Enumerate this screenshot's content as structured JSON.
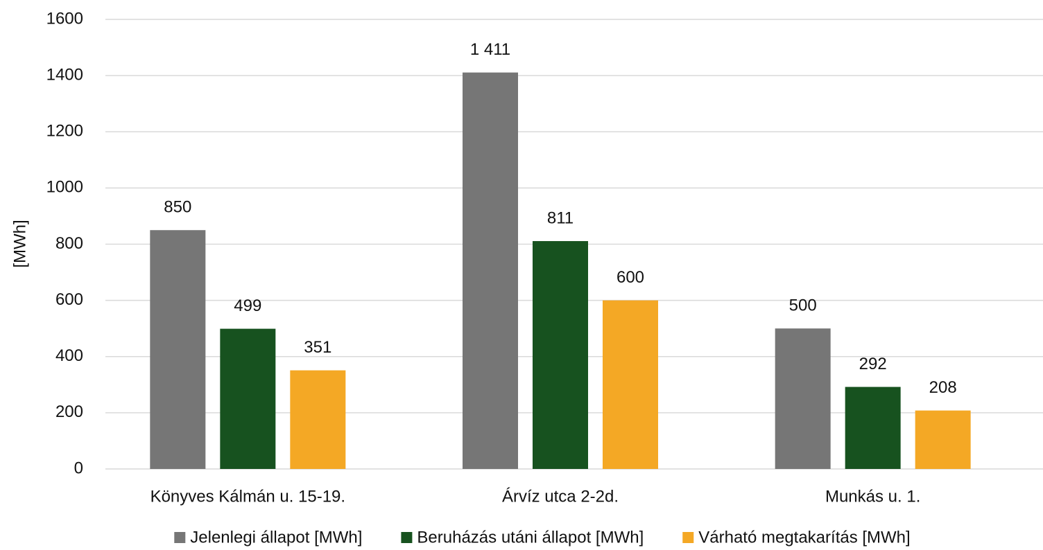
{
  "chart_data": {
    "type": "bar",
    "y_label": "[MWh]",
    "categories": [
      "Könyves Kálmán u. 15-19.",
      "Árvíz utca 2-2d.",
      "Munkás u. 1."
    ],
    "series": [
      {
        "name": "Jelenlegi állapot [MWh]",
        "color": "#767676",
        "values": [
          850,
          1411,
          500
        ],
        "value_labels": [
          "850",
          "1 411",
          "500"
        ]
      },
      {
        "name": "Beruházás utáni állapot [MWh]",
        "color": "#17521f",
        "values": [
          499,
          811,
          292
        ]
      },
      {
        "name": "Várható megtakarítás [MWh]",
        "color": "#f4a825",
        "values": [
          351,
          600,
          208
        ]
      }
    ],
    "ylim": [
      0,
      1600
    ],
    "yticks": [
      0,
      200,
      400,
      600,
      800,
      1000,
      1200,
      1400,
      1600
    ],
    "grid": true,
    "legend": "bottom"
  }
}
